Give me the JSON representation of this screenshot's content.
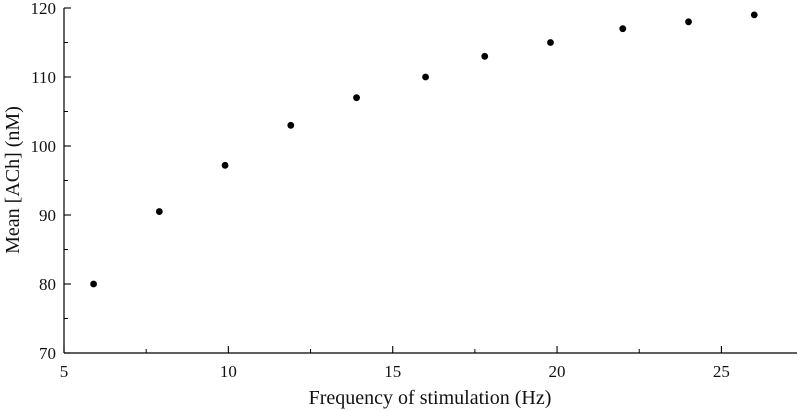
{
  "chart_data": {
    "type": "scatter",
    "title": "",
    "xlabel": "Frequency of stimulation (Hz)",
    "ylabel": "Mean [ACh] (nM)",
    "xlim": [
      5,
      27.3
    ],
    "ylim": [
      70,
      120
    ],
    "xticks": [
      5,
      10,
      15,
      20,
      25
    ],
    "yticks": [
      70,
      80,
      90,
      100,
      110,
      120
    ],
    "xtick_labels": [
      "5",
      "10",
      "15",
      "20",
      "25"
    ],
    "ytick_labels": [
      "70",
      "80",
      "90",
      "100",
      "110",
      "120"
    ],
    "grid": false,
    "legend": "none",
    "marker_color": "#000000",
    "series": [
      {
        "points": [
          {
            "x": 5.9,
            "y": 80
          },
          {
            "x": 7.9,
            "y": 90.5
          },
          {
            "x": 9.9,
            "y": 97.2
          },
          {
            "x": 11.9,
            "y": 103
          },
          {
            "x": 13.9,
            "y": 107
          },
          {
            "x": 16.0,
            "y": 110
          },
          {
            "x": 17.8,
            "y": 113
          },
          {
            "x": 19.8,
            "y": 115
          },
          {
            "x": 22.0,
            "y": 117
          },
          {
            "x": 24.0,
            "y": 118
          },
          {
            "x": 26.0,
            "y": 119
          }
        ]
      }
    ]
  }
}
